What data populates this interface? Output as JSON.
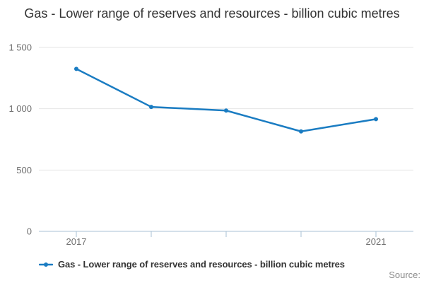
{
  "title": "Gas - Lower range of reserves and resources - billion cubic metres",
  "legend": {
    "label": "Gas - Lower range of reserves and resources - billion cubic metres"
  },
  "source": {
    "label": "Source:"
  },
  "colors": {
    "line": "#1a7cc2",
    "grid": "#e6e6e6",
    "axis": "#aac0d4",
    "axis_label": "#6f6f6f",
    "title_text": "#333333",
    "source_text": "#8b8b8b"
  },
  "chart_data": {
    "type": "line",
    "title": "Gas - Lower range of reserves and resources - billion cubic metres",
    "x": [
      2017,
      2018,
      2019,
      2020,
      2021
    ],
    "series": [
      {
        "name": "Gas - Lower range of reserves and resources - billion cubic metres",
        "values": [
          1325,
          1015,
          985,
          815,
          915
        ]
      }
    ],
    "xlabel": "",
    "ylabel": "",
    "ylim": [
      0,
      1500
    ],
    "yticks": [
      0,
      500,
      1000,
      1500
    ],
    "ytick_labels": [
      "0",
      "500",
      "1 000",
      "1 500"
    ],
    "xtick_labels_visible": [
      "2017",
      "",
      "",
      "",
      "2021"
    ],
    "grid": true,
    "legend_position": "bottom-left"
  }
}
